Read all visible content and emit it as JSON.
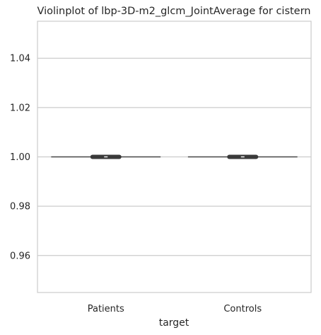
{
  "chart_data": {
    "type": "violin",
    "title": "Violinplot of lbp-3D-m2_glcm_JointAverage for cistern",
    "xlabel": "target",
    "ylabel": "",
    "categories": [
      "Patients",
      "Controls"
    ],
    "ylim": [
      0.945,
      1.055
    ],
    "yticks": [
      0.96,
      0.98,
      1.0,
      1.02,
      1.04
    ],
    "ytick_labels": [
      "0.96",
      "0.98",
      "1.00",
      "1.02",
      "1.04"
    ],
    "series": [
      {
        "name": "Patients",
        "value": 1.0
      },
      {
        "name": "Controls",
        "value": 1.0
      }
    ],
    "grid": true,
    "colors": {
      "grid": "#cccccc",
      "spine": "#cccccc",
      "line": "#4a4a4a",
      "box": "#3a3a3a"
    }
  }
}
